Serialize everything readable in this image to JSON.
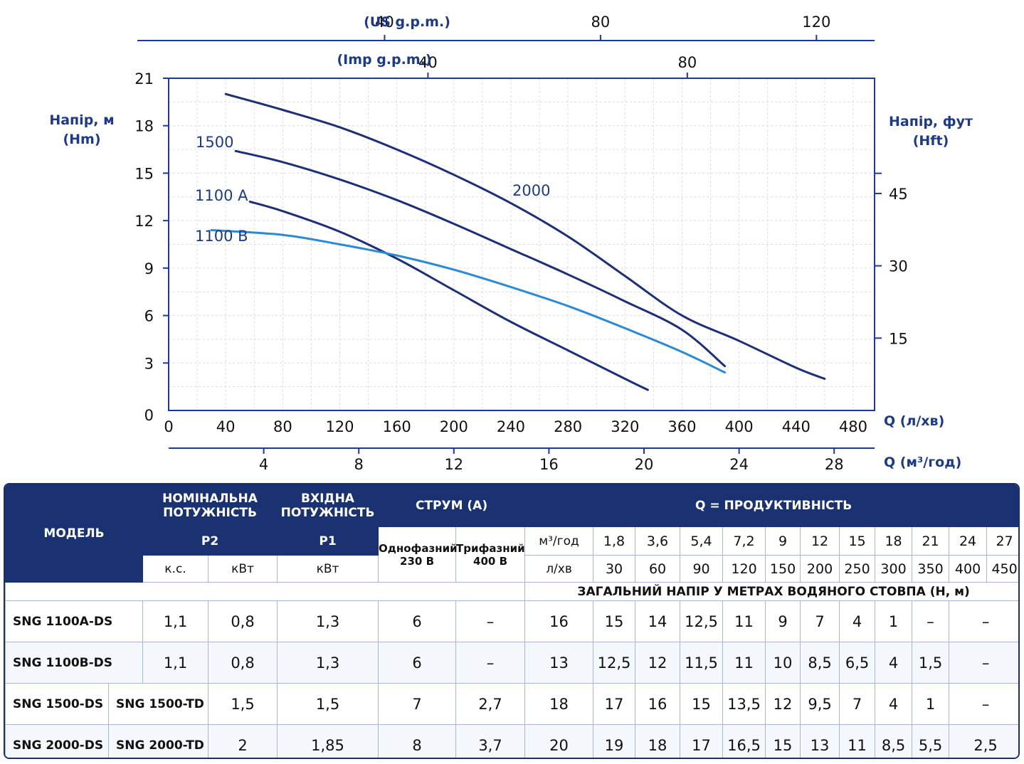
{
  "chart_data": {
    "type": "line",
    "x_unit_bottom": "Q (л/хв)",
    "x_unit_m3": "Q (м³/год)",
    "x_unit_us": "(US g.p.m.)",
    "x_unit_imp": "(Imp g.p.m.)",
    "ylabel_left": [
      "Напір, м",
      "(Hm)"
    ],
    "ylabel_right": [
      "Напір, фут",
      "(Hft)"
    ],
    "xlim": [
      0,
      495
    ],
    "ylim": [
      0,
      21
    ],
    "x_ticks": [
      0,
      40,
      80,
      120,
      160,
      200,
      240,
      280,
      320,
      360,
      400,
      440,
      480
    ],
    "y_ticks": [
      0,
      3,
      6,
      9,
      12,
      15,
      18,
      21
    ],
    "m3_ticks": [
      4,
      8,
      12,
      16,
      20,
      24,
      28
    ],
    "us_gpm_ticks": [
      40,
      80,
      120
    ],
    "imp_gpm_ticks": [
      40,
      80
    ],
    "hft_ticks": [
      15,
      30,
      45
    ],
    "grid": true,
    "series": [
      {
        "name": "2000",
        "color": "#1b2f7a",
        "x": [
          40,
          80,
          120,
          160,
          200,
          240,
          280,
          320,
          360,
          400,
          440,
          460
        ],
        "y": [
          20,
          19,
          17.9,
          16.5,
          14.9,
          13.1,
          11,
          8.5,
          6,
          4.4,
          2.7,
          2
        ]
      },
      {
        "name": "1500",
        "color": "#1b2f7a",
        "x": [
          47,
          80,
          120,
          160,
          200,
          240,
          280,
          320,
          360,
          390
        ],
        "y": [
          16.4,
          15.7,
          14.6,
          13.3,
          11.8,
          10.2,
          8.6,
          6.9,
          5.1,
          2.8
        ]
      },
      {
        "name": "1100 A",
        "color": "#1b2f7a",
        "x": [
          57,
          80,
          120,
          160,
          200,
          240,
          280,
          320,
          336
        ],
        "y": [
          13.2,
          12.6,
          11.3,
          9.6,
          7.6,
          5.6,
          3.8,
          2.0,
          1.3
        ]
      },
      {
        "name": "1100 B",
        "color": "#2a8ad6",
        "x": [
          30,
          80,
          120,
          160,
          200,
          240,
          280,
          320,
          360,
          390
        ],
        "y": [
          11.4,
          11.1,
          10.5,
          9.8,
          8.9,
          7.8,
          6.6,
          5.2,
          3.7,
          2.4
        ]
      }
    ],
    "curve_labels": [
      "2000",
      "1500",
      "1100 A",
      "1100 B"
    ]
  },
  "table": {
    "header": {
      "model": "МОДЕЛЬ",
      "p2_line1": "НОМІНАЛЬНА",
      "p2_line2": "ПОТУЖНІСТЬ",
      "p1_line1": "ВХІДНА",
      "p1_line2": "ПОТУЖНІСТЬ",
      "current": "СТРУМ (А)",
      "q": "Q = ПРОДУКТИВНІСТЬ",
      "p2": "P2",
      "p1": "P1",
      "hp": "к.с.",
      "kw": "кВт",
      "kw_p1": "кВт",
      "single_line1": "Однофазний",
      "single_line2": "230 В",
      "three_line1": "Трифазний",
      "three_line2": "400 В",
      "m3h": "м³/год",
      "lmin": "л/хв",
      "head_note": "ЗАГАЛЬНИЙ НАПІР У МЕТРАХ ВОДЯНОГО СТОВПА (Н, м)"
    },
    "q_m3h": [
      "1,8",
      "3,6",
      "5,4",
      "7,2",
      "9",
      "12",
      "15",
      "18",
      "21",
      "24",
      "27"
    ],
    "q_lmin": [
      "30",
      "60",
      "90",
      "120",
      "150",
      "200",
      "250",
      "300",
      "350",
      "400",
      "450"
    ],
    "rows": [
      {
        "model_ds": "SNG 1100A-DS",
        "model_td": "",
        "hp": "1,1",
        "kw": "0,8",
        "p1": "1,3",
        "i1": "6",
        "i3": "–",
        "heads": [
          "16",
          "15",
          "14",
          "12,5",
          "11",
          "9",
          "7",
          "4",
          "1",
          "–",
          "–"
        ]
      },
      {
        "model_ds": "SNG 1100B-DS",
        "model_td": "",
        "hp": "1,1",
        "kw": "0,8",
        "p1": "1,3",
        "i1": "6",
        "i3": "–",
        "heads": [
          "13",
          "12,5",
          "12",
          "11,5",
          "11",
          "10",
          "8,5",
          "6,5",
          "4",
          "1,5",
          "–"
        ]
      },
      {
        "model_ds": "SNG 1500-DS",
        "model_td": "SNG 1500-TD",
        "hp": "",
        "kw": "1,5",
        "p1": "1,5",
        "i1": "7",
        "i3": "2,7",
        "heads": [
          "18",
          "17",
          "16",
          "15",
          "13,5",
          "12",
          "9,5",
          "7",
          "4",
          "1",
          "–"
        ]
      },
      {
        "model_ds": "SNG 2000-DS",
        "model_td": "SNG 2000-TD",
        "hp": "",
        "kw": "2",
        "p1": "1,85",
        "i1": "8",
        "i3": "3,7",
        "heads": [
          "20",
          "19",
          "18",
          "17",
          "16,5",
          "15",
          "13",
          "11",
          "8,5",
          "5,5",
          "2,5"
        ]
      }
    ]
  }
}
